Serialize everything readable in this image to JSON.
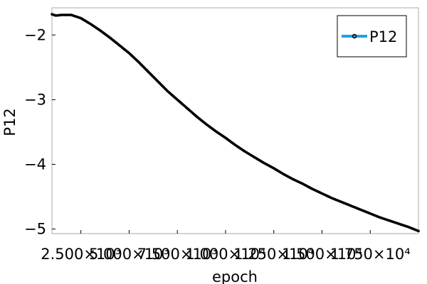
{
  "chart_data": {
    "type": "line",
    "title": "",
    "xlabel": "epoch",
    "ylabel": "P12",
    "xlim": [
      1000,
      20000
    ],
    "ylim": [
      -5.07,
      -1.58
    ],
    "grid": false,
    "legend_position": "top-right",
    "x_ticks": [
      {
        "value": 2500,
        "label": "2.500×10³"
      },
      {
        "value": 5000,
        "label": "5.000×10³"
      },
      {
        "value": 7500,
        "label": "7.500×10³"
      },
      {
        "value": 10000,
        "label": "1.000×10⁴"
      },
      {
        "value": 12500,
        "label": "1.250×10⁴"
      },
      {
        "value": 15000,
        "label": "1.500×10⁴"
      },
      {
        "value": 17500,
        "label": "1.750×10⁴"
      }
    ],
    "y_ticks": [
      {
        "value": -2,
        "label": "−2"
      },
      {
        "value": -3,
        "label": "−3"
      },
      {
        "value": -4,
        "label": "−4"
      },
      {
        "value": -5,
        "label": "−5"
      }
    ],
    "series": [
      {
        "name": "P12",
        "color": "#1aa3e8",
        "marker_color": "#000000",
        "x": [
          1000,
          1200,
          1500,
          2000,
          2500,
          3000,
          3500,
          4000,
          4500,
          5000,
          5500,
          6000,
          6500,
          7000,
          7500,
          8000,
          8500,
          9000,
          9500,
          10000,
          10500,
          11000,
          11500,
          12000,
          12500,
          13000,
          13500,
          14000,
          14500,
          15000,
          15500,
          16000,
          16500,
          17000,
          17500,
          18000,
          18500,
          19000,
          19500,
          20000
        ],
        "y": [
          -1.68,
          -1.7,
          -1.69,
          -1.69,
          -1.74,
          -1.83,
          -1.93,
          -2.04,
          -2.16,
          -2.28,
          -2.42,
          -2.57,
          -2.72,
          -2.87,
          -3.0,
          -3.13,
          -3.26,
          -3.38,
          -3.49,
          -3.59,
          -3.7,
          -3.8,
          -3.89,
          -3.98,
          -4.06,
          -4.15,
          -4.23,
          -4.3,
          -4.38,
          -4.45,
          -4.52,
          -4.58,
          -4.64,
          -4.7,
          -4.76,
          -4.82,
          -4.87,
          -4.92,
          -4.97,
          -5.03
        ]
      }
    ]
  }
}
